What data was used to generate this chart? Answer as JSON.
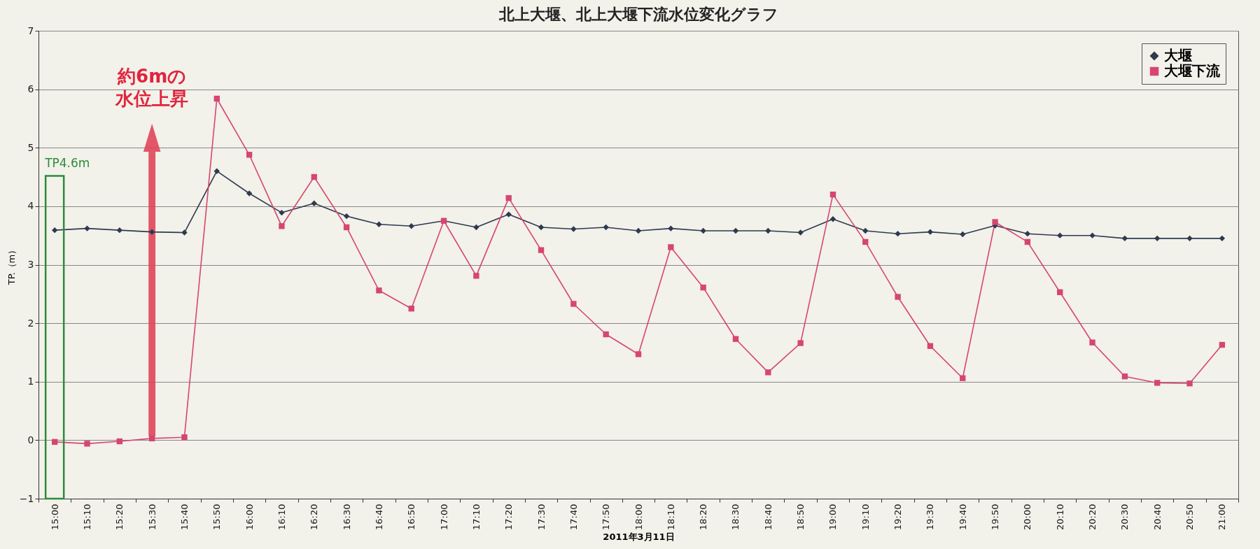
{
  "chart_data": {
    "type": "line",
    "title": "北上大堰、北上大堰下流水位変化グラフ",
    "xlabel": "2011年3月11日",
    "ylabel": "TP.（m）",
    "categories": [
      "15:00",
      "15:10",
      "15:20",
      "15:30",
      "15:40",
      "15:50",
      "16:00",
      "16:10",
      "16:20",
      "16:30",
      "16:40",
      "16:50",
      "17:00",
      "17:10",
      "17:20",
      "17:30",
      "17:40",
      "17:50",
      "18:00",
      "18:10",
      "18:20",
      "18:30",
      "18:40",
      "18:50",
      "19:00",
      "19:10",
      "19:20",
      "19:30",
      "19:40",
      "19:50",
      "20:00",
      "20:10",
      "20:20",
      "20:30",
      "20:40",
      "20:50",
      "21:00"
    ],
    "series": [
      {
        "name": "大堰",
        "color": "#2e3a4e",
        "marker": "diamond",
        "values": [
          3.59,
          3.62,
          3.59,
          3.56,
          3.55,
          4.6,
          4.22,
          3.89,
          4.05,
          3.83,
          3.69,
          3.66,
          3.75,
          3.64,
          3.86,
          3.64,
          3.61,
          3.64,
          3.58,
          3.62,
          3.58,
          3.58,
          3.58,
          3.55,
          3.78,
          3.58,
          3.53,
          3.56,
          3.52,
          3.67,
          3.53,
          3.5,
          3.5,
          3.45,
          3.45,
          3.45,
          3.45
        ]
      },
      {
        "name": "大堰下流",
        "color": "#d6466f",
        "marker": "square",
        "values": [
          -0.03,
          -0.06,
          -0.02,
          0.03,
          0.05,
          5.84,
          4.88,
          3.66,
          4.5,
          3.64,
          2.56,
          2.25,
          3.75,
          2.81,
          4.14,
          3.25,
          2.33,
          1.81,
          1.47,
          3.3,
          2.61,
          1.73,
          1.16,
          1.66,
          4.2,
          3.39,
          2.45,
          1.61,
          1.06,
          3.73,
          3.39,
          2.53,
          1.67,
          1.09,
          0.98,
          0.97,
          1.63
        ]
      }
    ],
    "ylim": [
      -1,
      7
    ],
    "yticks": [
      -1,
      0,
      1,
      2,
      3,
      4,
      5,
      6,
      7
    ],
    "grid": "y",
    "legend": "top right",
    "line_style": "solid",
    "annotations": [
      "約6mの水位上昇",
      "TP4.6m"
    ]
  }
}
